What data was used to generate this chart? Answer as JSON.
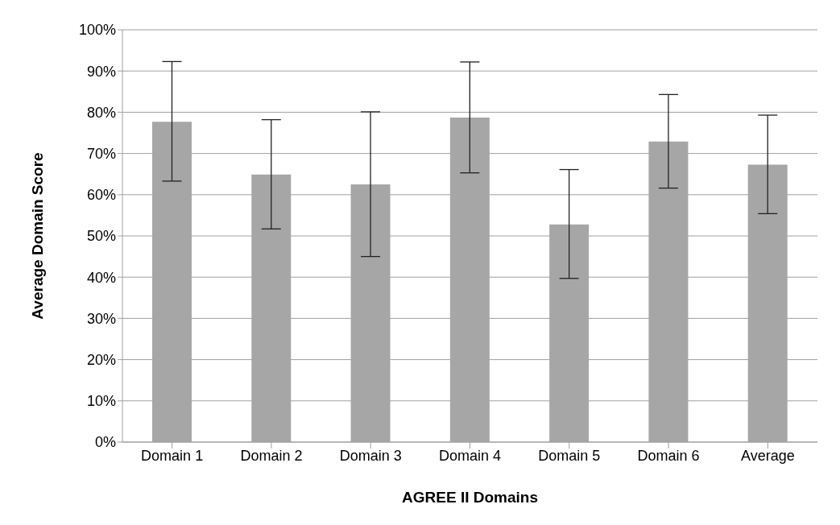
{
  "chart_data": {
    "type": "bar",
    "xlabel": "AGREE II Domains",
    "ylabel": "Average Domain Score",
    "categories": [
      "Domain 1",
      "Domain 2",
      "Domain 3",
      "Domain 4",
      "Domain 5",
      "Domain 6",
      "Average"
    ],
    "values": [
      77.7,
      64.9,
      62.5,
      78.7,
      52.8,
      72.9,
      67.3
    ],
    "errors": [
      [
        63.3,
        92.3
      ],
      [
        51.7,
        78.2
      ],
      [
        45.0,
        80.1
      ],
      [
        65.3,
        92.2
      ],
      [
        39.7,
        66.1
      ],
      [
        61.6,
        84.3
      ],
      [
        55.4,
        79.3
      ]
    ],
    "color": "#a6a6a6",
    "ylim": [
      0,
      100
    ],
    "yticks": [
      {
        "value": 0,
        "label": "0%"
      },
      {
        "value": 10,
        "label": "10%"
      },
      {
        "value": 20,
        "label": "20%"
      },
      {
        "value": 30,
        "label": "30%"
      },
      {
        "value": 40,
        "label": "40%"
      },
      {
        "value": 50,
        "label": "50%"
      },
      {
        "value": 60,
        "label": "60%"
      },
      {
        "value": 70,
        "label": "70%"
      },
      {
        "value": 80,
        "label": "80%"
      },
      {
        "value": 90,
        "label": "90%"
      },
      {
        "value": 100,
        "label": "100%"
      }
    ],
    "grid": "y",
    "legend": false
  }
}
